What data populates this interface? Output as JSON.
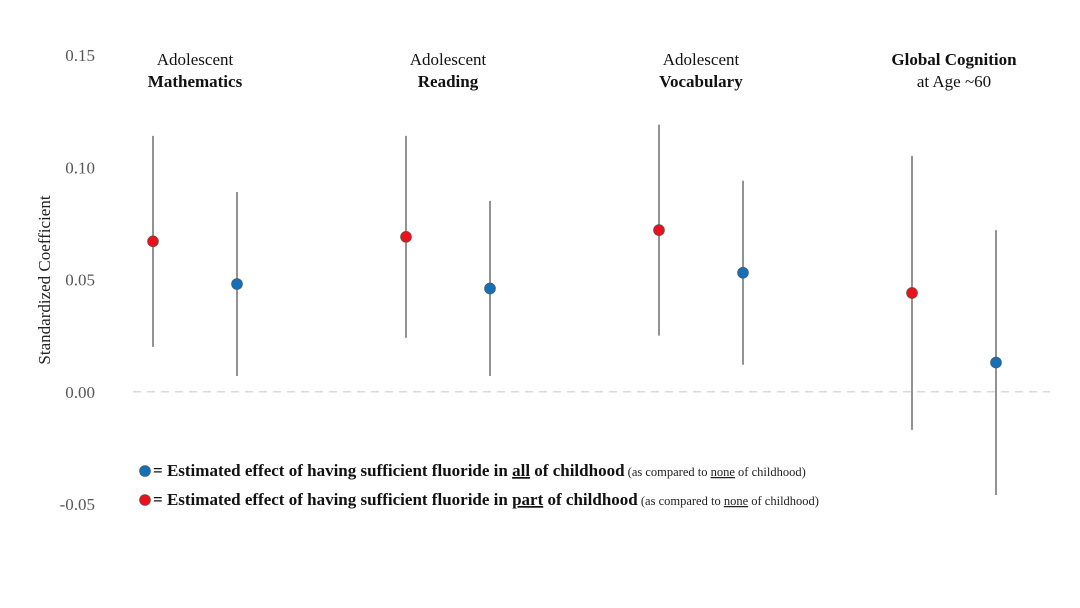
{
  "chart_data": {
    "type": "scatter",
    "subtype": "point-with-interval",
    "ylabel": "Standardized Coefficient",
    "ylim": [
      -0.05,
      0.15
    ],
    "yticks": [
      {
        "value": 0.15,
        "label": "0.15"
      },
      {
        "value": 0.1,
        "label": "0.10"
      },
      {
        "value": 0.05,
        "label": "0.05"
      },
      {
        "value": 0.0,
        "label": "0.00"
      },
      {
        "value": -0.05,
        "label": "-0.05"
      }
    ],
    "reference_line": 0,
    "panels": [
      {
        "line1": "Adolescent",
        "line2": "Mathematics",
        "bold_line": 2
      },
      {
        "line1": "Adolescent",
        "line2": "Reading",
        "bold_line": 2
      },
      {
        "line1": "Adolescent",
        "line2": "Vocabulary",
        "bold_line": 2
      },
      {
        "line1": "Global Cognition",
        "line2": "at Age ~60",
        "bold_line": 1
      }
    ],
    "series": [
      {
        "name": "part of childhood",
        "color": "#e8121c",
        "values": [
          0.067,
          0.069,
          0.072,
          0.044
        ],
        "lower": [
          0.02,
          0.024,
          0.025,
          -0.017
        ],
        "upper": [
          0.114,
          0.114,
          0.119,
          0.105
        ]
      },
      {
        "name": "all of childhood",
        "color": "#1570b8",
        "values": [
          0.048,
          0.046,
          0.053,
          0.013
        ],
        "lower": [
          0.007,
          0.007,
          0.012,
          -0.046
        ],
        "upper": [
          0.089,
          0.085,
          0.094,
          0.072
        ]
      }
    ],
    "legend": [
      {
        "color": "#1570b8",
        "eq": " = ",
        "text_a": "Estimated effect of having sufficient fluoride in ",
        "keyword": "all",
        "text_b": " of childhood",
        "note_a": " (as compared to ",
        "note_u": "none",
        "note_b": " of childhood)"
      },
      {
        "color": "#e8121c",
        "eq": " = ",
        "text_a": "Estimated effect of having sufficient fluoride in ",
        "keyword": "part",
        "text_b": " of childhood",
        "note_a": " (as compared to ",
        "note_u": "none",
        "note_b": " of childhood)"
      }
    ]
  }
}
